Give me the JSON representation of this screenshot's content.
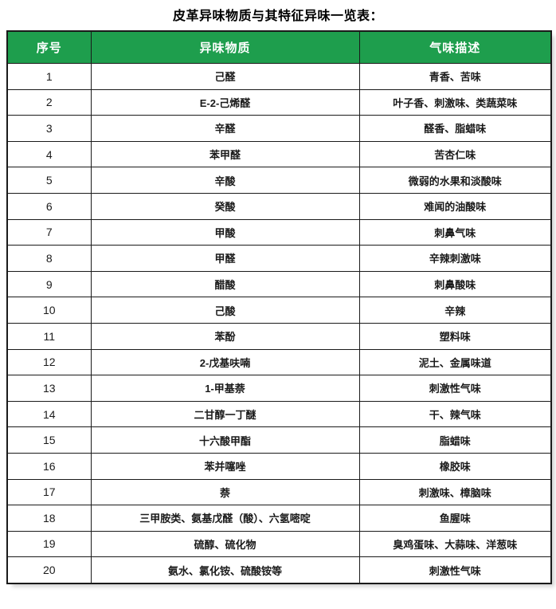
{
  "page": {
    "title": "皮革异味物质与其特征异味一览表："
  },
  "table": {
    "headers": [
      "序号",
      "异味物质",
      "气味描述"
    ],
    "colors": {
      "header_bg": "#1E9E4D",
      "header_text": "#FFFFFF",
      "border": "#1A1A1A",
      "title_text": "#000000"
    },
    "rows": [
      {
        "no": "1",
        "substance": "己醛",
        "odor": "青香、苦味"
      },
      {
        "no": "2",
        "substance": "E-2-己烯醛",
        "odor": "叶子香、刺激味、类蔬菜味"
      },
      {
        "no": "3",
        "substance": "辛醛",
        "odor": "醛香、脂蜡味"
      },
      {
        "no": "4",
        "substance": "苯甲醛",
        "odor": "苦杏仁味"
      },
      {
        "no": "5",
        "substance": "辛酸",
        "odor": "微弱的水果和淡酸味"
      },
      {
        "no": "6",
        "substance": "癸酸",
        "odor": "难闻的油酸味"
      },
      {
        "no": "7",
        "substance": "甲酸",
        "odor": "刺鼻气味"
      },
      {
        "no": "8",
        "substance": "甲醛",
        "odor": "辛辣刺激味"
      },
      {
        "no": "9",
        "substance": "醋酸",
        "odor": "刺鼻酸味"
      },
      {
        "no": "10",
        "substance": "己酸",
        "odor": "辛辣"
      },
      {
        "no": "11",
        "substance": "苯酚",
        "odor": "塑料味"
      },
      {
        "no": "12",
        "substance": "2-戊基呋喃",
        "odor": "泥土、金属味道"
      },
      {
        "no": "13",
        "substance": "1-甲基萘",
        "odor": "刺激性气味"
      },
      {
        "no": "14",
        "substance": "二甘醇一丁醚",
        "odor": "干、辣气味"
      },
      {
        "no": "15",
        "substance": "十六酸甲酯",
        "odor": "脂蜡味"
      },
      {
        "no": "16",
        "substance": "苯并噻唑",
        "odor": "橡胶味"
      },
      {
        "no": "17",
        "substance": "萘",
        "odor": "刺激味、樟脑味"
      },
      {
        "no": "18",
        "substance": "三甲胺类、氨基戊醛（酸）、六氢嘧啶",
        "odor": "鱼腥味"
      },
      {
        "no": "19",
        "substance": "硫醇、硫化物",
        "odor": "臭鸡蛋味、大蒜味、洋葱味"
      },
      {
        "no": "20",
        "substance": "氨水、氯化铵、硫酸铵等",
        "odor": "刺激性气味"
      }
    ]
  }
}
